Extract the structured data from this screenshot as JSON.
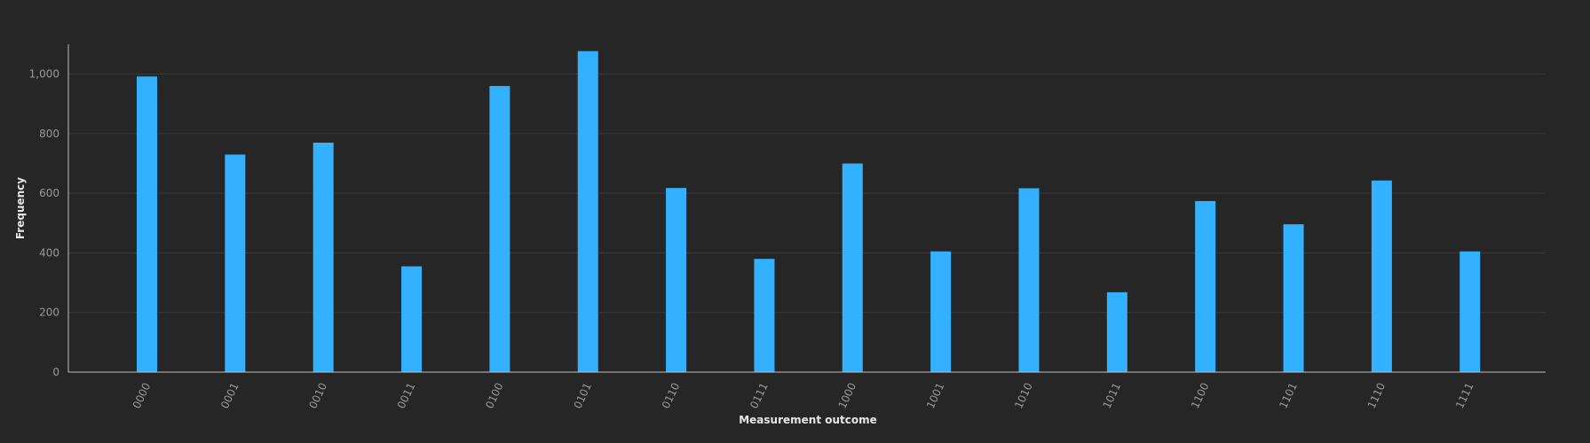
{
  "chart_data": {
    "type": "bar",
    "title": "",
    "xlabel": "Measurement outcome",
    "ylabel": "Frequency",
    "categories": [
      "0000",
      "0001",
      "0010",
      "0011",
      "0100",
      "0101",
      "0110",
      "0111",
      "1000",
      "1001",
      "1010",
      "1011",
      "1100",
      "1101",
      "1110",
      "1111"
    ],
    "values": [
      992,
      730,
      770,
      355,
      960,
      1077,
      618,
      380,
      700,
      405,
      617,
      268,
      574,
      496,
      643,
      405
    ],
    "ylim": [
      0,
      1100
    ],
    "yticks": [
      0,
      200,
      400,
      600,
      800,
      1000
    ],
    "ytick_labels": [
      "0",
      "200",
      "400",
      "600",
      "800",
      "1,000"
    ],
    "grid": true,
    "legend": "none",
    "bar_color": "#33b1ff",
    "background_color": "#262626"
  }
}
